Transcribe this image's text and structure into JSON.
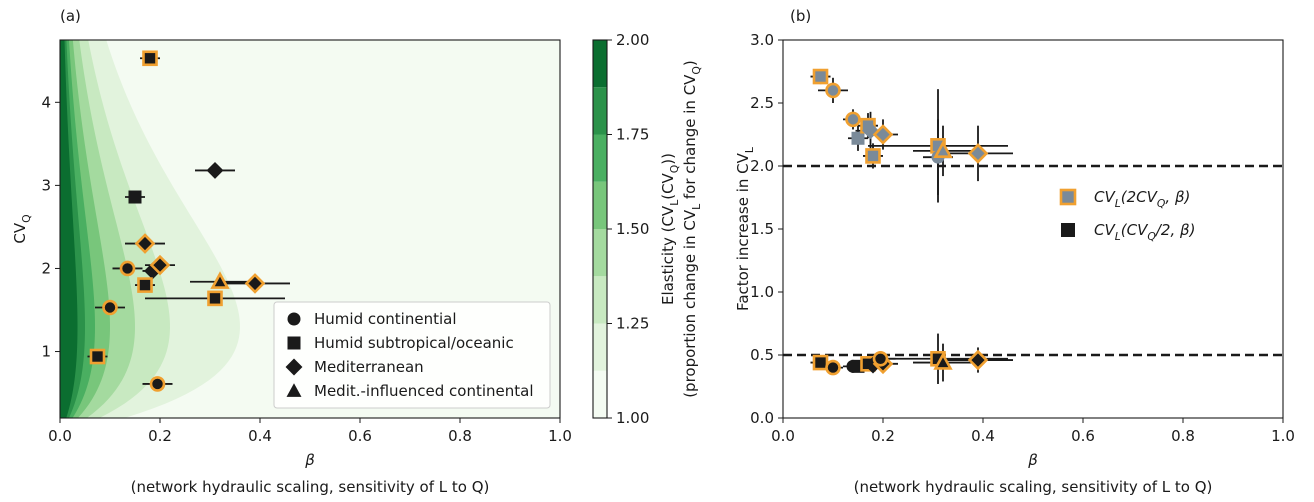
{
  "chart_data": [
    {
      "type": "scatter",
      "panel": "(a)",
      "x_label": "β",
      "x_label_note": "(network hydraulic scaling, sensitivity of L to Q)",
      "y_label": "CV_Q",
      "x": [
        0.18,
        0.31,
        0.15,
        0.17,
        0.135,
        0.185,
        0.2,
        0.32,
        0.39,
        0.17,
        0.31,
        0.1,
        0.075,
        0.195
      ],
      "values": [
        4.53,
        3.18,
        2.86,
        2.3,
        2.0,
        1.97,
        2.04,
        1.84,
        1.82,
        1.8,
        1.64,
        1.53,
        0.94,
        0.61
      ],
      "markers": [
        "square",
        "diamond",
        "square",
        "diamond",
        "circle",
        "diamond",
        "diamond",
        "triangle",
        "diamond",
        "square",
        "square",
        "circle",
        "square",
        "circle"
      ],
      "outlined": [
        true,
        false,
        false,
        true,
        true,
        false,
        true,
        true,
        true,
        true,
        true,
        true,
        true,
        true
      ],
      "xerr": [
        0.02,
        0.04,
        0.02,
        0.04,
        0.03,
        0.02,
        0.03,
        0.06,
        0.07,
        0.02,
        0.14,
        0.03,
        0.02,
        0.03
      ],
      "color": "#1a1a1a",
      "outline_color": "#f0a030",
      "xlim": [
        0,
        1
      ],
      "ylim": [
        0.2,
        4.75
      ],
      "xticks": [
        {
          "value": 0,
          "label": "0.0"
        },
        {
          "value": 0.2,
          "label": "0.2"
        },
        {
          "value": 0.4,
          "label": "0.4"
        },
        {
          "value": 0.6,
          "label": "0.6"
        },
        {
          "value": 0.8,
          "label": "0.8"
        },
        {
          "value": 1,
          "label": "1.0"
        }
      ],
      "yticks": [
        1,
        2,
        3,
        4
      ],
      "legend": {
        "loc": "lower right",
        "entries": [
          "Humid continential",
          "Humid subtropical/oceanic",
          "Mediterranean",
          "Medit.-influenced continental"
        ],
        "markers": [
          "circle",
          "square",
          "diamond",
          "triangle"
        ]
      },
      "colorbar": {
        "label": "Elasticity (CV_L(CV_Q))",
        "label_note": "(proportion change in CV_L for change in CV_Q)",
        "levels": [
          1,
          1.125,
          1.25,
          1.375,
          1.5,
          1.625,
          1.75,
          1.875,
          2
        ],
        "colors": [
          "#f4fbf2",
          "#e2f3dd",
          "#c8e9c1",
          "#a4da9f",
          "#78c67b",
          "#4aaf61",
          "#2b924a",
          "#0b6e30"
        ],
        "ticks": [
          {
            "value": 1,
            "label": "1.00"
          },
          {
            "value": 1.25,
            "label": "1.25"
          },
          {
            "value": 1.5,
            "label": "1.50"
          },
          {
            "value": 1.75,
            "label": "1.75"
          },
          {
            "value": 2,
            "label": "2.00"
          }
        ]
      }
    },
    {
      "type": "scatter",
      "panel": "(b)",
      "x_label": "β",
      "x_label_note": "(network hydraulic scaling, sensitivity of L to Q)",
      "y_label": "Factor increase in CV_L",
      "xlim": [
        0,
        1
      ],
      "ylim": [
        0,
        3
      ],
      "xticks": [
        {
          "value": 0,
          "label": "0.0"
        },
        {
          "value": 0.2,
          "label": "0.2"
        },
        {
          "value": 0.4,
          "label": "0.4"
        },
        {
          "value": 0.6,
          "label": "0.6"
        },
        {
          "value": 0.8,
          "label": "0.8"
        },
        {
          "value": 1,
          "label": "1.0"
        }
      ],
      "yticks": [
        {
          "value": 0,
          "label": "0.0"
        },
        {
          "value": 0.5,
          "label": "0.5"
        },
        {
          "value": 1,
          "label": "1.0"
        },
        {
          "value": 1.5,
          "label": "1.5"
        },
        {
          "value": 2,
          "label": "2.0"
        },
        {
          "value": 2.5,
          "label": "2.5"
        },
        {
          "value": 3,
          "label": "3.0"
        }
      ],
      "hlines": [
        2,
        0.5
      ],
      "outline_color": "#f0a030",
      "legend_loc": "center right",
      "series": [
        {
          "name": "CV_L(2CV_Q, β)",
          "color": "#7a8a99",
          "x": [
            0.075,
            0.1,
            0.14,
            0.15,
            0.17,
            0.175,
            0.2,
            0.18,
            0.31,
            0.31,
            0.32,
            0.39
          ],
          "values": [
            2.71,
            2.6,
            2.37,
            2.22,
            2.32,
            2.28,
            2.25,
            2.08,
            2.16,
            2.07,
            2.12,
            2.1
          ],
          "markers": [
            "square",
            "circle",
            "circle",
            "square",
            "square",
            "diamond",
            "diamond",
            "square",
            "square",
            "circle",
            "triangle",
            "diamond"
          ],
          "outlined": [
            true,
            true,
            true,
            false,
            true,
            false,
            true,
            true,
            true,
            false,
            true,
            true
          ],
          "xerr": [
            0.02,
            0.03,
            0.02,
            0.02,
            0.02,
            0.03,
            0.03,
            0.02,
            0.14,
            0.03,
            0.06,
            0.07
          ],
          "yerr": [
            0.06,
            0.1,
            0.08,
            0.1,
            0.1,
            0.15,
            0.12,
            0.1,
            0.45,
            0.3,
            0.2,
            0.22
          ]
        },
        {
          "name": "CV_L(CV_Q/2, β)",
          "color": "#1a1a1a",
          "x": [
            0.075,
            0.1,
            0.14,
            0.15,
            0.17,
            0.18,
            0.2,
            0.195,
            0.31,
            0.32,
            0.39
          ],
          "values": [
            0.44,
            0.4,
            0.41,
            0.41,
            0.43,
            0.42,
            0.43,
            0.47,
            0.47,
            0.44,
            0.46
          ],
          "markers": [
            "square",
            "circle",
            "circle",
            "square",
            "square",
            "diamond",
            "diamond",
            "circle",
            "square",
            "triangle",
            "diamond"
          ],
          "outlined": [
            true,
            true,
            false,
            false,
            true,
            false,
            true,
            true,
            true,
            true,
            true
          ],
          "xerr": [
            0.02,
            0.02,
            0.02,
            0.02,
            0.02,
            0.02,
            0.03,
            0.03,
            0.14,
            0.06,
            0.07
          ],
          "yerr": [
            0.03,
            0.03,
            0.03,
            0.03,
            0.05,
            0.05,
            0.06,
            0.06,
            0.2,
            0.15,
            0.1
          ]
        }
      ]
    }
  ]
}
